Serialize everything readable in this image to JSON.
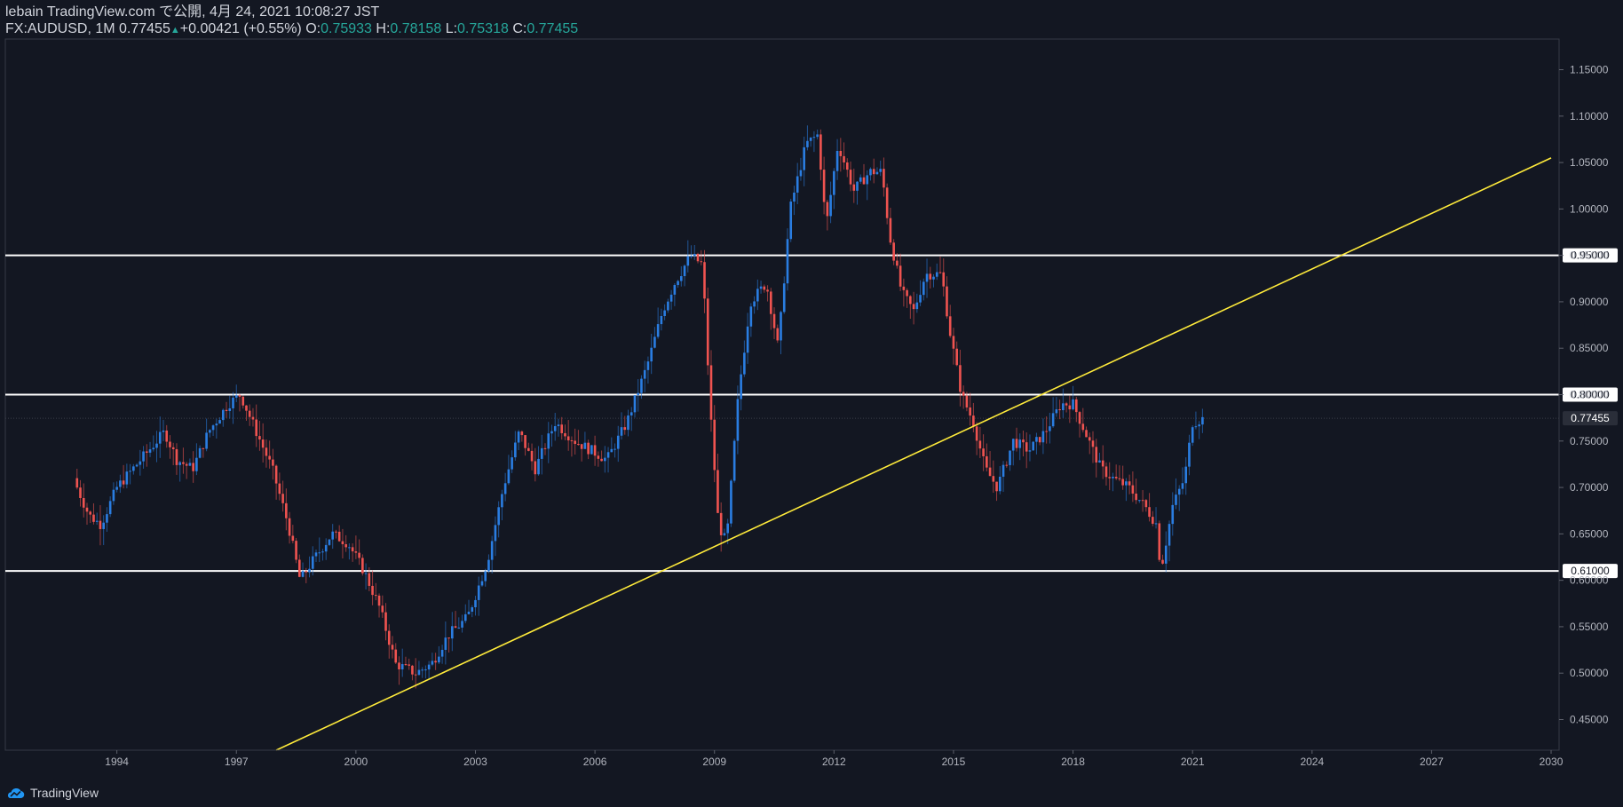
{
  "header": {
    "line1": "lebain TradingView.com で公開, 4月 24, 2021 10:08:27 JST",
    "symbol": "FX:AUDUSD, 1M 0.77455",
    "change": "+0.00421 (+0.55%)",
    "o_label": "O:",
    "o_value": "0.75933",
    "h_label": "H:",
    "h_value": "0.78158",
    "l_label": "L:",
    "l_value": "0.75318",
    "c_label": "C:",
    "c_value": "0.77455"
  },
  "footer": {
    "brand": "TradingView"
  },
  "colors": {
    "background": "#131722",
    "up": "#2a7de1",
    "down": "#ef5350",
    "trendline": "#ffeb3b",
    "level": "#ffffff",
    "price_tag": "#2a2e39"
  },
  "chart_data": {
    "type": "candlestick",
    "title": "",
    "xlabel": "",
    "ylabel": "",
    "xlim": [
      1991.2,
      2030.2
    ],
    "ylim": [
      0.417,
      1.183
    ],
    "x_ticks": [
      "1994",
      "1997",
      "2000",
      "2003",
      "2006",
      "2009",
      "2012",
      "2015",
      "2018",
      "2021",
      "2024",
      "2027",
      "2030"
    ],
    "y_ticks": [
      "0.45000",
      "0.50000",
      "0.55000",
      "0.60000",
      "0.65000",
      "0.70000",
      "0.75000",
      "0.80000",
      "0.85000",
      "0.90000",
      "0.95000",
      "1.00000",
      "1.05000",
      "1.10000",
      "1.15000"
    ],
    "horizontal_levels": [
      {
        "value": 0.95,
        "label": "0.95000"
      },
      {
        "value": 0.8,
        "label": "0.80000"
      },
      {
        "value": 0.61,
        "label": "0.61000"
      }
    ],
    "last_price": {
      "value": 0.77455,
      "label": "0.77455"
    },
    "trendline": {
      "x": [
        1998.0,
        2030.0
      ],
      "y": [
        0.417,
        1.055
      ]
    },
    "close_path": [
      [
        1993.0,
        0.7
      ],
      [
        1993.3,
        0.67
      ],
      [
        1993.6,
        0.66
      ],
      [
        1994.0,
        0.7
      ],
      [
        1994.4,
        0.72
      ],
      [
        1994.8,
        0.74
      ],
      [
        1995.2,
        0.76
      ],
      [
        1995.5,
        0.73
      ],
      [
        1995.9,
        0.72
      ],
      [
        1996.3,
        0.76
      ],
      [
        1996.8,
        0.79
      ],
      [
        1997.1,
        0.8
      ],
      [
        1997.5,
        0.76
      ],
      [
        1997.9,
        0.72
      ],
      [
        1998.3,
        0.66
      ],
      [
        1998.6,
        0.6
      ],
      [
        1998.9,
        0.62
      ],
      [
        1999.4,
        0.65
      ],
      [
        1999.8,
        0.64
      ],
      [
        2000.2,
        0.61
      ],
      [
        2000.6,
        0.57
      ],
      [
        2001.0,
        0.51
      ],
      [
        2001.5,
        0.5
      ],
      [
        2001.9,
        0.51
      ],
      [
        2002.3,
        0.54
      ],
      [
        2002.8,
        0.56
      ],
      [
        2003.3,
        0.62
      ],
      [
        2003.7,
        0.7
      ],
      [
        2004.1,
        0.76
      ],
      [
        2004.5,
        0.72
      ],
      [
        2005.0,
        0.77
      ],
      [
        2005.5,
        0.75
      ],
      [
        2005.9,
        0.74
      ],
      [
        2006.3,
        0.73
      ],
      [
        2006.8,
        0.77
      ],
      [
        2007.3,
        0.83
      ],
      [
        2007.7,
        0.89
      ],
      [
        2008.0,
        0.92
      ],
      [
        2008.4,
        0.95
      ],
      [
        2008.7,
        0.94
      ],
      [
        2008.9,
        0.78
      ],
      [
        2009.1,
        0.66
      ],
      [
        2009.3,
        0.64
      ],
      [
        2009.6,
        0.8
      ],
      [
        2009.9,
        0.9
      ],
      [
        2010.3,
        0.92
      ],
      [
        2010.6,
        0.85
      ],
      [
        2010.9,
        1.0
      ],
      [
        2011.3,
        1.07
      ],
      [
        2011.6,
        1.08
      ],
      [
        2011.8,
        0.98
      ],
      [
        2012.1,
        1.07
      ],
      [
        2012.5,
        1.02
      ],
      [
        2012.9,
        1.04
      ],
      [
        2013.2,
        1.04
      ],
      [
        2013.4,
        0.97
      ],
      [
        2013.7,
        0.91
      ],
      [
        2014.0,
        0.89
      ],
      [
        2014.3,
        0.93
      ],
      [
        2014.7,
        0.93
      ],
      [
        2014.9,
        0.87
      ],
      [
        2015.2,
        0.8
      ],
      [
        2015.5,
        0.77
      ],
      [
        2015.8,
        0.72
      ],
      [
        2016.1,
        0.7
      ],
      [
        2016.5,
        0.75
      ],
      [
        2016.9,
        0.74
      ],
      [
        2017.3,
        0.76
      ],
      [
        2017.7,
        0.79
      ],
      [
        2018.0,
        0.79
      ],
      [
        2018.3,
        0.76
      ],
      [
        2018.7,
        0.72
      ],
      [
        2019.0,
        0.71
      ],
      [
        2019.4,
        0.7
      ],
      [
        2019.8,
        0.68
      ],
      [
        2020.1,
        0.66
      ],
      [
        2020.2,
        0.61
      ],
      [
        2020.5,
        0.68
      ],
      [
        2020.8,
        0.71
      ],
      [
        2021.0,
        0.77
      ],
      [
        2021.3,
        0.77455
      ]
    ]
  }
}
